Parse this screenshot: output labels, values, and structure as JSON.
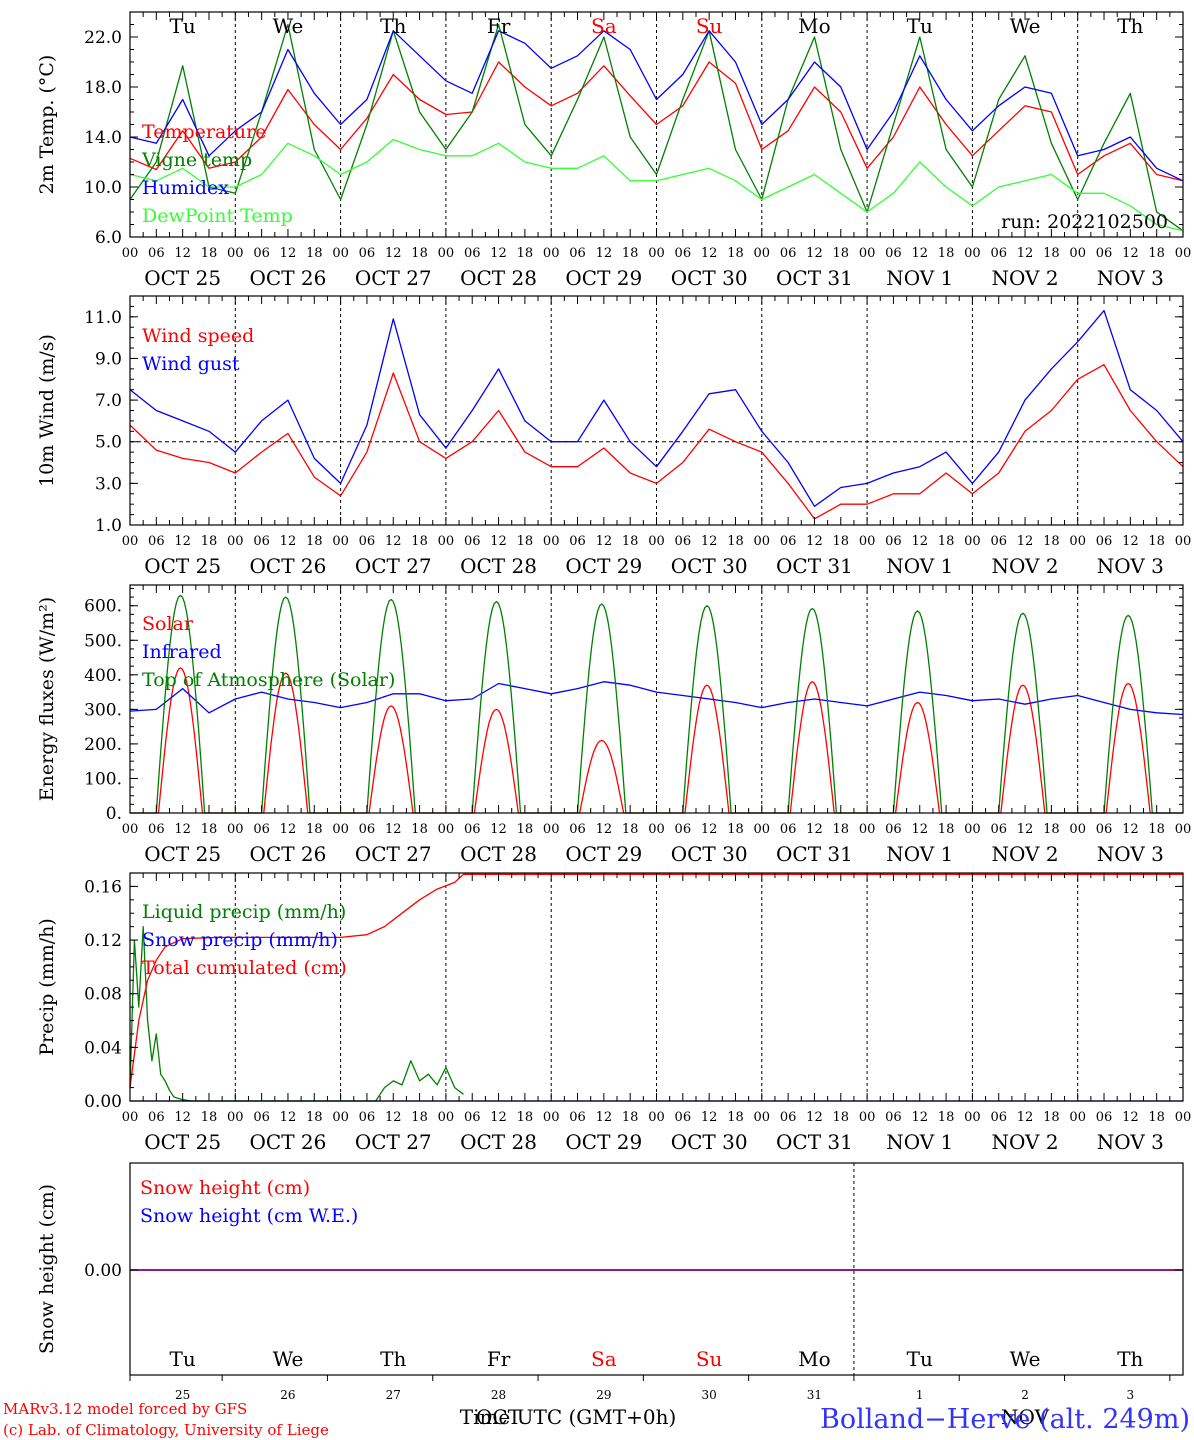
{
  "chart_data": [
    {
      "type": "line",
      "ylabel": "2m Temp. (°C)",
      "ylim": [
        6,
        24
      ],
      "yticks": [
        "6.0",
        "10.0",
        "14.0",
        "18.0",
        "22.0"
      ],
      "ytick_values": [
        6,
        10,
        14,
        18,
        22
      ],
      "xlim_hours": [
        0,
        240
      ],
      "x_unit": "hours since Oct 25 00 UTC",
      "run_label": "run: 2022102500",
      "series": [
        {
          "name": "Temperature",
          "color": "#ff0000",
          "x": [
            0,
            6,
            12,
            18,
            24,
            30,
            36,
            42,
            48,
            54,
            60,
            66,
            72,
            78,
            84,
            90,
            96,
            102,
            108,
            114,
            120,
            126,
            132,
            138,
            144,
            150,
            156,
            162,
            168,
            174,
            180,
            186,
            192,
            198,
            204,
            210,
            216,
            222,
            228,
            234,
            240
          ],
          "y": [
            12.3,
            11.4,
            14.5,
            11.5,
            12.0,
            14.0,
            17.8,
            15.0,
            13.0,
            15.5,
            19.0,
            17.0,
            15.8,
            16.0,
            20.0,
            18.0,
            16.5,
            17.5,
            19.7,
            17.3,
            15.0,
            16.5,
            20.0,
            18.3,
            13.0,
            14.5,
            18.0,
            16.0,
            11.5,
            14.0,
            18.0,
            15.0,
            12.5,
            14.5,
            16.5,
            16.0,
            11.0,
            12.5,
            13.5,
            11.0,
            10.5
          ]
        },
        {
          "name": "Vigne temp",
          "color": "#008000",
          "x": [
            0,
            6,
            12,
            18,
            24,
            30,
            36,
            42,
            48,
            54,
            60,
            66,
            72,
            78,
            84,
            90,
            96,
            102,
            108,
            114,
            120,
            126,
            132,
            138,
            144,
            150,
            156,
            162,
            168,
            174,
            180,
            186,
            192,
            198,
            204,
            210,
            216,
            222,
            228,
            234,
            240
          ],
          "y": [
            9.0,
            12.0,
            19.7,
            10.0,
            9.5,
            16.0,
            23.0,
            13.0,
            9.0,
            15.0,
            22.5,
            16.0,
            13.0,
            16.0,
            23.0,
            15.0,
            12.5,
            17.0,
            22.0,
            14.0,
            11.0,
            17.0,
            22.5,
            13.0,
            9.0,
            17.0,
            22.0,
            13.0,
            8.0,
            15.0,
            22.0,
            13.0,
            10.0,
            17.0,
            20.5,
            13.5,
            9.0,
            13.5,
            17.5,
            8.0,
            6.5
          ]
        },
        {
          "name": "Humidex",
          "color": "#0000ff",
          "x": [
            0,
            6,
            12,
            18,
            24,
            30,
            36,
            42,
            48,
            54,
            60,
            66,
            72,
            78,
            84,
            90,
            96,
            102,
            108,
            114,
            120,
            126,
            132,
            138,
            144,
            150,
            156,
            162,
            168,
            174,
            180,
            186,
            192,
            198,
            204,
            210,
            216,
            222,
            228,
            234,
            240
          ],
          "y": [
            14.0,
            13.5,
            17.0,
            12.5,
            14.5,
            16.0,
            21.0,
            17.5,
            15.0,
            17.0,
            22.5,
            20.5,
            18.5,
            17.5,
            22.5,
            21.5,
            19.5,
            20.5,
            22.5,
            21.0,
            17.0,
            19.0,
            22.5,
            20.0,
            15.0,
            17.0,
            20.0,
            18.0,
            13.0,
            16.0,
            20.5,
            17.0,
            14.5,
            16.5,
            18.0,
            17.5,
            12.5,
            13.0,
            14.0,
            11.5,
            10.5
          ]
        },
        {
          "name": "DewPoint Temp",
          "color": "#33ff33",
          "x": [
            0,
            6,
            12,
            18,
            24,
            30,
            36,
            42,
            48,
            54,
            60,
            66,
            72,
            78,
            84,
            90,
            96,
            102,
            108,
            114,
            120,
            126,
            132,
            138,
            144,
            150,
            156,
            162,
            168,
            174,
            180,
            186,
            192,
            198,
            204,
            210,
            216,
            222,
            228,
            234,
            240
          ],
          "y": [
            11.0,
            10.5,
            11.5,
            10.0,
            10.0,
            11.0,
            13.5,
            12.5,
            11.0,
            12.0,
            13.8,
            13.0,
            12.5,
            12.5,
            13.5,
            12.0,
            11.5,
            11.5,
            12.5,
            10.5,
            10.5,
            11.0,
            11.5,
            10.5,
            9.0,
            10.0,
            11.0,
            9.5,
            8.0,
            9.5,
            12.0,
            10.0,
            8.5,
            10.0,
            10.5,
            11.0,
            9.5,
            9.5,
            8.5,
            7.0,
            6.5
          ]
        }
      ]
    },
    {
      "type": "line",
      "ylabel": "10m Wind (m/s)",
      "ylim": [
        1,
        12
      ],
      "yticks": [
        "1.0",
        "3.0",
        "5.0",
        "7.0",
        "9.0",
        "11.0"
      ],
      "ytick_values": [
        1,
        3,
        5,
        7,
        9,
        11
      ],
      "reference_line": 5.0,
      "xlim_hours": [
        0,
        240
      ],
      "x_unit": "hours since Oct 25 00 UTC",
      "series": [
        {
          "name": "Wind speed",
          "color": "#ff0000",
          "x": [
            0,
            6,
            12,
            18,
            24,
            30,
            36,
            42,
            48,
            54,
            60,
            66,
            72,
            78,
            84,
            90,
            96,
            102,
            108,
            114,
            120,
            126,
            132,
            138,
            144,
            150,
            156,
            162,
            168,
            174,
            180,
            186,
            192,
            198,
            204,
            210,
            216,
            222,
            228,
            234,
            240
          ],
          "y": [
            5.8,
            4.6,
            4.2,
            4.0,
            3.5,
            4.5,
            5.4,
            3.3,
            2.4,
            4.5,
            8.3,
            5.0,
            4.2,
            5.0,
            6.5,
            4.5,
            3.8,
            3.8,
            4.7,
            3.5,
            3.0,
            4.0,
            5.6,
            5.0,
            4.5,
            3.0,
            1.3,
            2.0,
            2.0,
            2.5,
            2.5,
            3.5,
            2.5,
            3.5,
            5.5,
            6.5,
            8.0,
            8.7,
            6.5,
            5.0,
            3.8
          ]
        },
        {
          "name": "Wind gust",
          "color": "#0000ff",
          "x": [
            0,
            6,
            12,
            18,
            24,
            30,
            36,
            42,
            48,
            54,
            60,
            66,
            72,
            78,
            84,
            90,
            96,
            102,
            108,
            114,
            120,
            126,
            132,
            138,
            144,
            150,
            156,
            162,
            168,
            174,
            180,
            186,
            192,
            198,
            204,
            210,
            216,
            222,
            228,
            234,
            240
          ],
          "y": [
            7.5,
            6.5,
            6.0,
            5.5,
            4.5,
            6.0,
            7.0,
            4.2,
            3.0,
            5.8,
            10.9,
            6.3,
            4.7,
            6.5,
            8.5,
            6.0,
            5.0,
            5.0,
            7.0,
            5.0,
            3.8,
            5.5,
            7.3,
            7.5,
            5.5,
            4.0,
            1.9,
            2.8,
            3.0,
            3.5,
            3.8,
            4.5,
            3.0,
            4.5,
            7.0,
            8.5,
            9.8,
            11.3,
            7.5,
            6.5,
            5.0
          ]
        }
      ]
    },
    {
      "type": "line",
      "ylabel": "Energy fluxes (W/m²)",
      "ylim": [
        0,
        660
      ],
      "yticks": [
        "0.",
        "100.",
        "200.",
        "300.",
        "400.",
        "500.",
        "600."
      ],
      "ytick_values": [
        0,
        100,
        200,
        300,
        400,
        500,
        600
      ],
      "xlim_hours": [
        0,
        240
      ],
      "x_unit": "hours since Oct 25 00 UTC",
      "series": [
        {
          "name": "Solar",
          "color": "#ff0000",
          "daily_peak": [
            420,
            405,
            310,
            300,
            210,
            370,
            380,
            320,
            370,
            375
          ],
          "daylight_hours_utc": [
            6.5,
            16.5
          ]
        },
        {
          "name": "Infrared",
          "color": "#0000ff",
          "x": [
            0,
            6,
            12,
            18,
            24,
            30,
            36,
            42,
            48,
            54,
            60,
            66,
            72,
            78,
            84,
            90,
            96,
            102,
            108,
            114,
            120,
            126,
            132,
            138,
            144,
            150,
            156,
            162,
            168,
            174,
            180,
            186,
            192,
            198,
            204,
            210,
            216,
            222,
            228,
            234,
            240
          ],
          "y": [
            295,
            300,
            360,
            290,
            330,
            350,
            330,
            320,
            305,
            320,
            345,
            345,
            325,
            330,
            375,
            360,
            345,
            360,
            380,
            370,
            350,
            340,
            330,
            320,
            305,
            320,
            330,
            320,
            310,
            330,
            350,
            340,
            325,
            330,
            315,
            330,
            340,
            320,
            300,
            290,
            285
          ]
        },
        {
          "name": "Top of Atmosphere (Solar)",
          "color": "#008000",
          "daily_peak": [
            630,
            625,
            618,
            612,
            605,
            600,
            592,
            585,
            578,
            572
          ],
          "daylight_hours_utc": [
            6.0,
            17.0
          ]
        }
      ]
    },
    {
      "type": "line",
      "ylabel": "Precip (mm/h)",
      "ylim": [
        0,
        0.17
      ],
      "yticks": [
        "0.00",
        "0.04",
        "0.08",
        "0.12",
        "0.16"
      ],
      "ytick_values": [
        0,
        0.04,
        0.08,
        0.12,
        0.16
      ],
      "xlim_hours": [
        0,
        240
      ],
      "x_unit": "hours since Oct 25 00 UTC",
      "series": [
        {
          "name": "Liquid precip (mm/h)",
          "color": "#008000",
          "x": [
            0,
            1,
            2,
            3,
            4,
            5,
            6,
            7,
            8,
            9,
            10,
            12,
            14,
            16,
            18,
            20,
            56,
            58,
            60,
            62,
            64,
            66,
            68,
            70,
            72,
            74,
            76
          ],
          "y": [
            0.01,
            0.12,
            0.07,
            0.13,
            0.06,
            0.03,
            0.05,
            0.02,
            0.015,
            0.008,
            0.003,
            0.001,
            0,
            0,
            0,
            0,
            0,
            0.01,
            0.015,
            0.012,
            0.03,
            0.015,
            0.02,
            0.012,
            0.025,
            0.01,
            0.005
          ]
        },
        {
          "name": "Snow precip (mm/h)",
          "color": "#0000ff",
          "x": [
            0,
            240
          ],
          "y": [
            0,
            0
          ]
        },
        {
          "name": "Total cumulated (cm)",
          "color": "#ff0000",
          "x": [
            0,
            2,
            4,
            6,
            8,
            12,
            20,
            48,
            54,
            58,
            62,
            66,
            70,
            74,
            76,
            80,
            240
          ],
          "y": [
            0.01,
            0.06,
            0.09,
            0.105,
            0.115,
            0.121,
            0.122,
            0.122,
            0.124,
            0.13,
            0.14,
            0.15,
            0.158,
            0.163,
            0.169,
            0.169,
            0.169
          ]
        }
      ]
    },
    {
      "type": "line",
      "ylabel": "Snow height (cm)",
      "yticks": [
        "0.00"
      ],
      "ytick_values": [
        0
      ],
      "xlim_hours": [
        0,
        240
      ],
      "series": [
        {
          "name": "Snow height (cm)",
          "color": "#ff0000",
          "x": [
            0,
            240
          ],
          "y": [
            0,
            0
          ]
        },
        {
          "name": "Snow height (cm W.E.)",
          "color": "#0000ff",
          "x": [
            0,
            240
          ],
          "y": [
            0,
            0
          ]
        }
      ]
    }
  ],
  "axis": {
    "hour_labels": [
      "00",
      "06",
      "12",
      "18"
    ],
    "end_label": "00",
    "dates": [
      "OCT 25",
      "OCT 26",
      "OCT 27",
      "OCT 28",
      "OCT 29",
      "OCT 30",
      "OCT 31",
      "NOV  1",
      "NOV  2",
      "NOV  3"
    ],
    "weekdays": [
      "Tu",
      "We",
      "Th",
      "Fr",
      "Sa",
      "Su",
      "Mo",
      "Tu",
      "We",
      "Th"
    ],
    "weekday_colors": [
      "#000000",
      "#000000",
      "#000000",
      "#000000",
      "#ff0000",
      "#ff0000",
      "#000000",
      "#000000",
      "#000000",
      "#000000"
    ],
    "day_numbers": [
      "25",
      "26",
      "27",
      "28",
      "29",
      "30",
      "31",
      "1",
      "2",
      "3"
    ],
    "month_labels": [
      "OCT",
      "NOV"
    ],
    "bottom_title": "Time UTC (GMT+0h)"
  },
  "footer": {
    "credit_line1": "MARv3.12 model forced by GFS",
    "credit_line2": "(c) Lab. of Climatology, University of Liege",
    "credit_color": "#ff0000",
    "station": "Bolland−Herve (alt. 249m)",
    "station_color": "#3333ff"
  }
}
